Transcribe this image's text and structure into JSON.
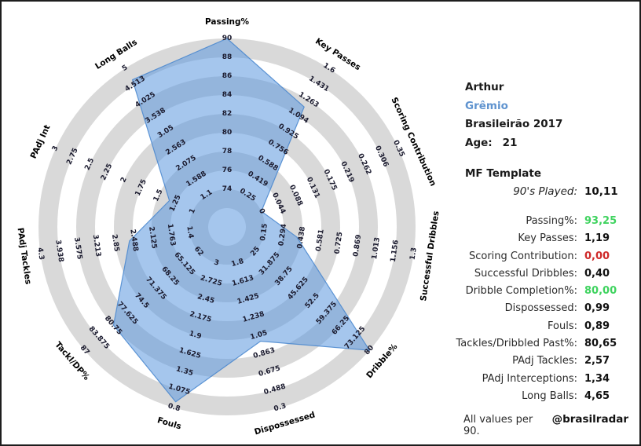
{
  "player": {
    "name": "Arthur",
    "club": "Grêmio",
    "league_season": "Brasileirão 2017",
    "age_label": "Age:",
    "age_value": "21"
  },
  "template_block": {
    "title": "MF Template",
    "played_label": "90's Played:",
    "played_value": "10,11"
  },
  "stats": [
    {
      "label": "Passing%:",
      "value": "93,25",
      "value_color": "green"
    },
    {
      "label": "Key Passes:",
      "value": "1,19",
      "value_color": "black"
    },
    {
      "label": "Scoring Contribution:",
      "value": "0,00",
      "value_color": "red"
    },
    {
      "label": "Successful Dribbles:",
      "value": "0,40",
      "value_color": "black"
    },
    {
      "label": "Dribble Completion%:",
      "value": "80,00",
      "value_color": "green"
    },
    {
      "label": "Dispossessed:",
      "value": "0,99",
      "value_color": "black"
    },
    {
      "label": "Fouls:",
      "value": "0,89",
      "value_color": "black"
    },
    {
      "label": "Tackles/Dribbled Past%:",
      "value": "80,65",
      "value_color": "black"
    },
    {
      "label": "PAdj Tackles:",
      "value": "2,57",
      "value_color": "black"
    },
    {
      "label": "PAdj Interceptions:",
      "value": "1,34",
      "value_color": "black"
    },
    {
      "label": "Long Balls:",
      "value": "4,65",
      "value_color": "black"
    }
  ],
  "footer": {
    "note": "All values per 90.",
    "credit": "@brasilradar"
  },
  "colors": {
    "green": "#3fd35f",
    "red": "#cf2a2a",
    "black": "#111111",
    "club_blue": "#5f93cf"
  },
  "chart_data": {
    "type": "radar",
    "title": "Arthur — MF Template radar (values per 90)",
    "center": [
      287,
      287
    ],
    "radius": 240,
    "bands": 10,
    "legend_position": "none",
    "grid": "concentric-alternating-bands",
    "colors": {
      "band_gray": "#d9d9d9",
      "band_white": "#ffffff",
      "fill": "rgba(91,151,223,0.55)",
      "stroke": "rgba(72,134,206,0.85)"
    },
    "axes": [
      {
        "label": "Passing%",
        "value": 93.25,
        "ticks": [
          "74",
          "76",
          "78",
          "80",
          "82",
          "84",
          "86",
          "88",
          "90"
        ]
      },
      {
        "label": "Key Passes",
        "value": 1.19,
        "ticks": [
          "0.25",
          "0.419",
          "0.588",
          "0.756",
          "0.925",
          "1.094",
          "1.263",
          "1.431",
          "1.6"
        ]
      },
      {
        "label": "Scoring Contribution",
        "value": 0.0,
        "ticks": [
          "0",
          "0.044",
          "0.088",
          "0.131",
          "0.175",
          "0.219",
          "0.262",
          "0.306",
          "0.35"
        ]
      },
      {
        "label": "Successful Dribbles",
        "value": 0.4,
        "ticks": [
          "0.15",
          "0.294",
          "0.438",
          "0.581",
          "0.725",
          "0.869",
          "1.013",
          "1.156",
          "1.3"
        ]
      },
      {
        "label": "Dribble%",
        "value": 80.0,
        "ticks": [
          "25",
          "31.875",
          "38.75",
          "45.625",
          "52.5",
          "59.375",
          "66.25",
          "73.125",
          "80"
        ]
      },
      {
        "label": "Dispossessed",
        "value": 0.99,
        "ticks": [
          "1.8",
          "1.613",
          "1.425",
          "1.238",
          "1.05",
          "0.863",
          "0.675",
          "0.488",
          "0.3"
        ]
      },
      {
        "label": "Fouls",
        "value": 0.89,
        "ticks": [
          "3",
          "2.725",
          "2.45",
          "2.175",
          "1.9",
          "1.625",
          "1.35",
          "1.075",
          "0.8"
        ]
      },
      {
        "label": "Tackl/DP%",
        "value": 80.65,
        "ticks": [
          "62",
          "65.125",
          "68.25",
          "71.375",
          "74.5",
          "77.625",
          "80.75",
          "83.875",
          "87"
        ]
      },
      {
        "label": "PAdj Tackles",
        "value": 2.57,
        "ticks": [
          "1.4",
          "1.763",
          "2.125",
          "2.488",
          "2.85",
          "3.213",
          "3.575",
          "3.938",
          "4.3"
        ]
      },
      {
        "label": "PAdj Int",
        "value": 1.34,
        "ticks": [
          "1",
          "1.25",
          "1.5",
          "1.75",
          "2",
          "2.25",
          "2.5",
          "2.75",
          "3"
        ]
      },
      {
        "label": "Long Balls",
        "value": 4.65,
        "ticks": [
          "1.1",
          "1.588",
          "2.075",
          "2.563",
          "3.05",
          "3.538",
          "4.025",
          "4.513",
          "5"
        ]
      }
    ]
  }
}
